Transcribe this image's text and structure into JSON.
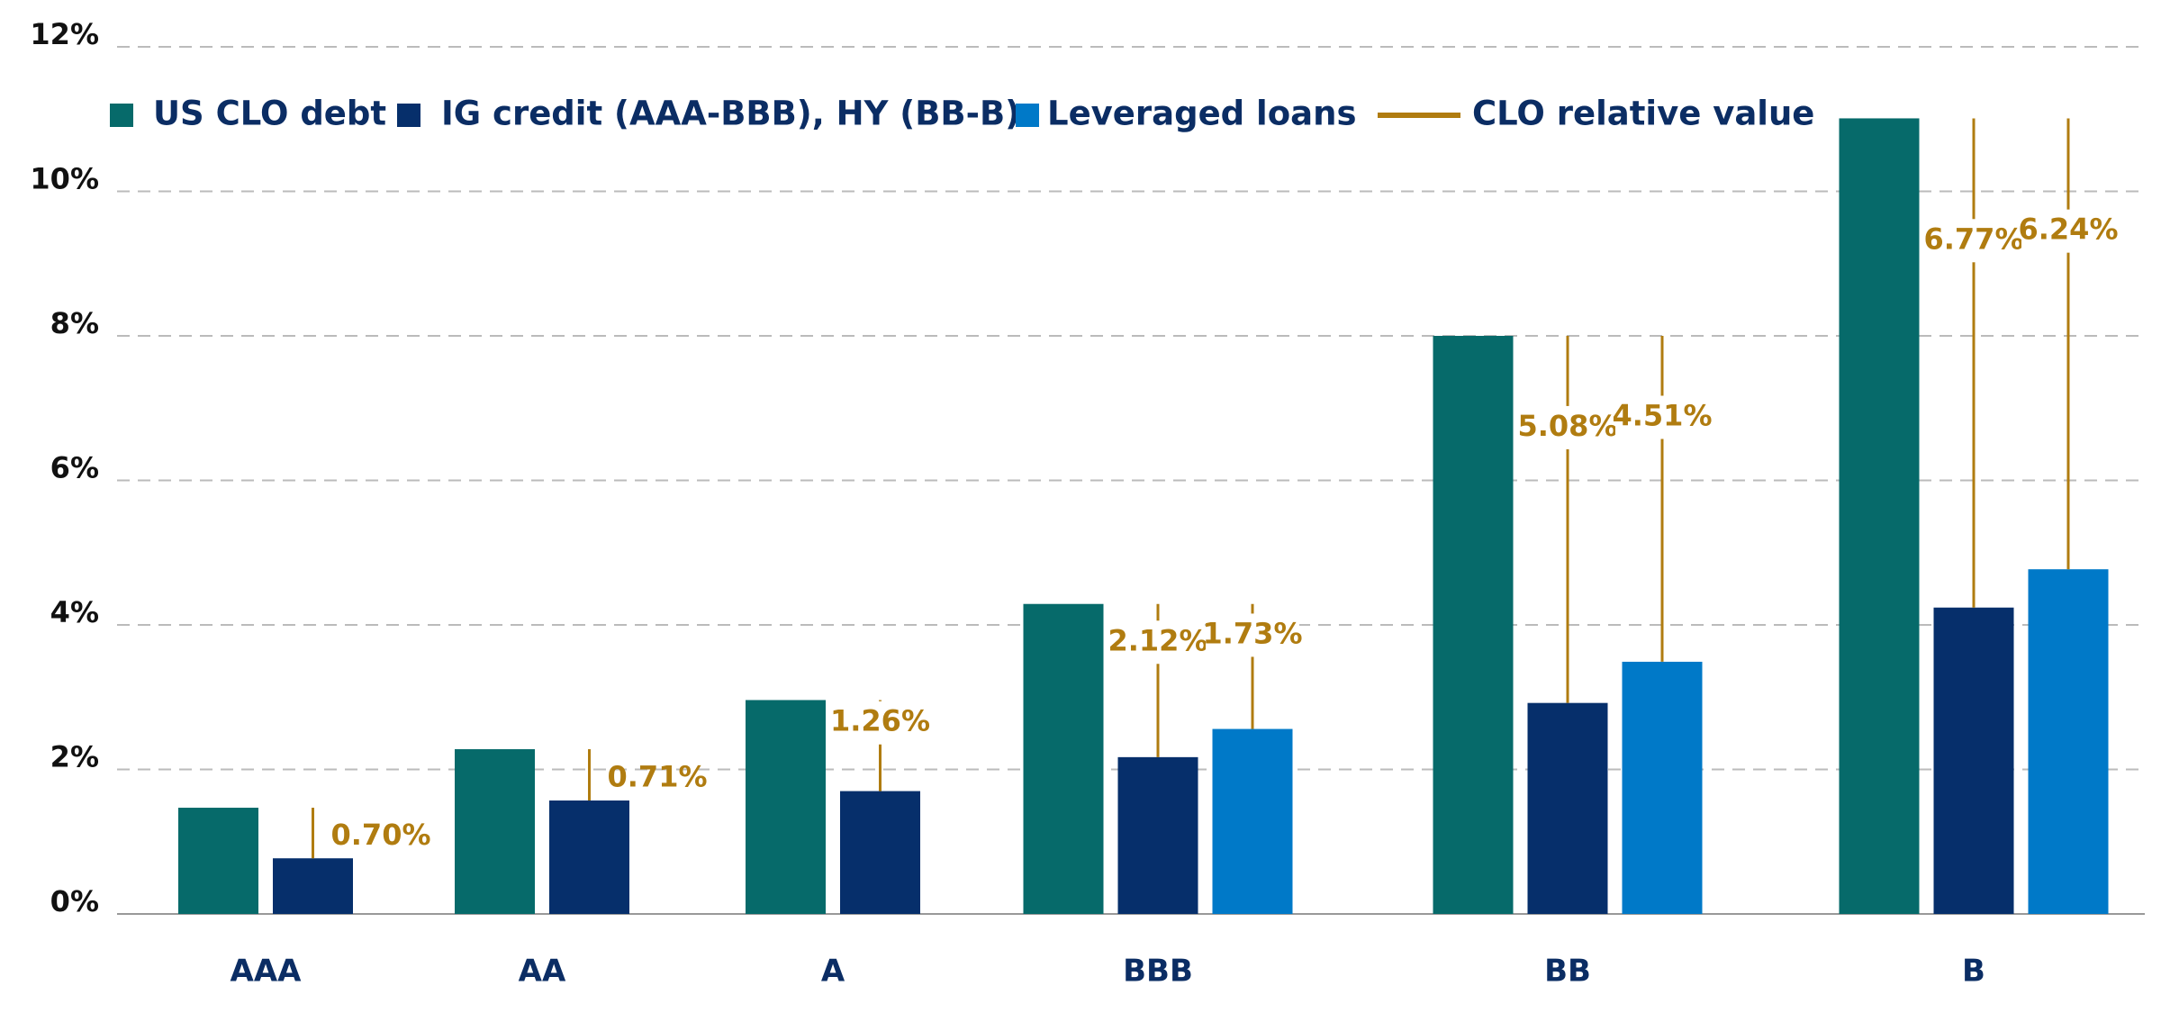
{
  "chart_data": {
    "type": "bar",
    "categories": [
      "AAA",
      "AA",
      "A",
      "BBB",
      "BB",
      "B"
    ],
    "series": [
      {
        "name": "US CLO debt",
        "color": "#066a6a",
        "values": [
          1.47,
          2.28,
          2.96,
          4.29,
          8.0,
          11.01
        ]
      },
      {
        "name": "IG credit (AAA-BBB), HY (BB-B)",
        "color": "#062f6b",
        "values": [
          0.77,
          1.57,
          1.7,
          2.17,
          2.92,
          4.24
        ]
      },
      {
        "name": "Leveraged loans",
        "color": "#0079c8",
        "values": [
          null,
          null,
          null,
          2.56,
          3.49,
          4.77
        ]
      },
      {
        "name": "CLO relative value",
        "color": "#b07c10",
        "values": [
          0.7,
          0.71,
          1.26,
          2.12,
          5.08,
          6.77
        ],
        "value_labels": [
          "0.70%",
          "0.71%",
          "1.26%",
          "2.12%",
          "5.08%",
          "6.77%"
        ],
        "values_2": [
          null,
          null,
          null,
          1.73,
          4.51,
          6.24
        ],
        "value_labels_2": [
          null,
          null,
          null,
          "1.73%",
          "4.51%",
          "6.24%"
        ]
      }
    ],
    "ylim": [
      0,
      12
    ],
    "yticks": [
      {
        "value": 0,
        "label": "0%"
      },
      {
        "value": 2,
        "label": "2%"
      },
      {
        "value": 4,
        "label": "4%"
      },
      {
        "value": 6,
        "label": "6%"
      },
      {
        "value": 8,
        "label": "8%"
      },
      {
        "value": 10,
        "label": "10%"
      },
      {
        "value": 12,
        "label": "12%"
      }
    ],
    "grid": true
  }
}
